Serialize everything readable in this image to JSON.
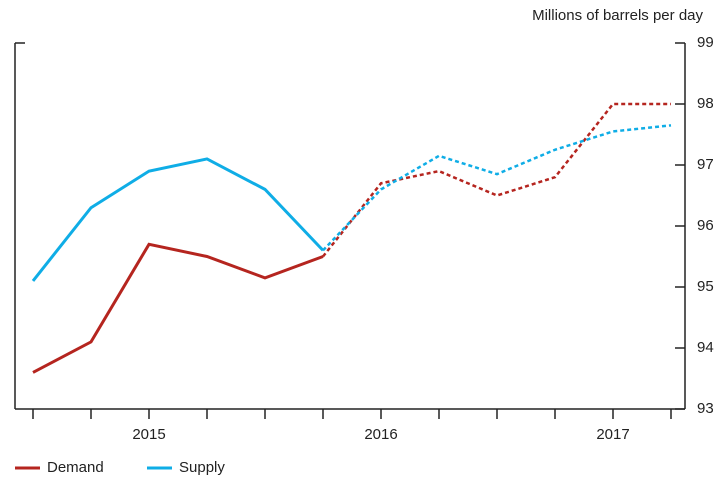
{
  "chart_data": {
    "type": "line",
    "y_axis_label": "Millions of barrels per day",
    "categories": [
      null,
      null,
      "2015",
      null,
      null,
      null,
      "2016",
      null,
      null,
      null,
      "2017",
      null
    ],
    "series": [
      {
        "name": "Demand",
        "color": "#b5251f",
        "dashed_from": 5,
        "values": [
          93.6,
          94.1,
          95.7,
          95.5,
          95.15,
          95.5,
          96.7,
          96.9,
          96.5,
          96.8,
          98.0,
          98.0
        ]
      },
      {
        "name": "Supply",
        "color": "#0fade6",
        "dashed_from": 5,
        "values": [
          95.1,
          96.3,
          96.9,
          97.1,
          96.6,
          95.6,
          96.6,
          97.15,
          96.85,
          97.25,
          97.55,
          97.65
        ]
      }
    ],
    "ylim": [
      93,
      99
    ],
    "yticks": [
      93,
      94,
      95,
      96,
      97,
      98,
      99
    ],
    "legend": "bottom-left"
  }
}
